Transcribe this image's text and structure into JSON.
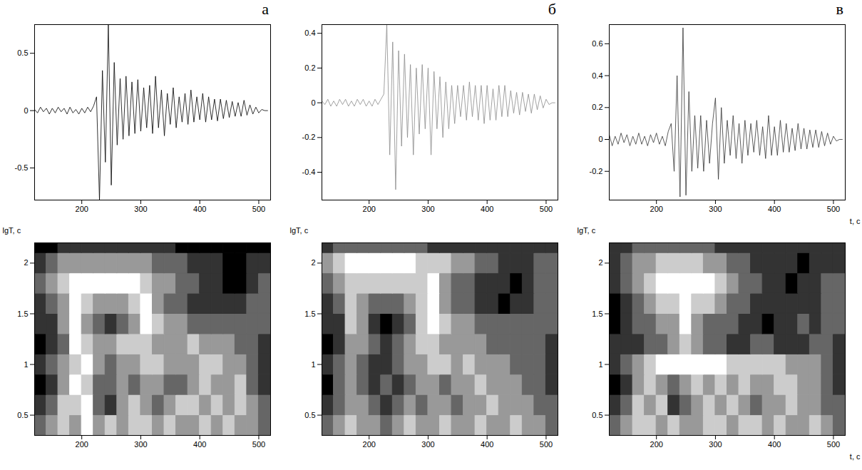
{
  "chart_data": [
    {
      "type": "line",
      "title": "а",
      "color": "#000000",
      "x": [
        120,
        125,
        130,
        135,
        140,
        145,
        150,
        155,
        160,
        165,
        170,
        175,
        180,
        185,
        190,
        195,
        200,
        205,
        210,
        215,
        220,
        225,
        230,
        235,
        240,
        245,
        250,
        255,
        260,
        265,
        270,
        275,
        280,
        285,
        290,
        295,
        300,
        305,
        310,
        315,
        320,
        325,
        330,
        335,
        340,
        345,
        350,
        355,
        360,
        365,
        370,
        375,
        380,
        385,
        390,
        395,
        400,
        405,
        410,
        415,
        420,
        425,
        430,
        435,
        440,
        445,
        450,
        455,
        460,
        465,
        470,
        475,
        480,
        485,
        490,
        495,
        500,
        505,
        510,
        515
      ],
      "values": [
        0.01,
        -0.02,
        0.03,
        -0.01,
        0.02,
        -0.03,
        0.02,
        -0.02,
        0.03,
        -0.01,
        0.02,
        -0.03,
        0.03,
        -0.02,
        0.01,
        -0.03,
        0.02,
        -0.02,
        0.03,
        -0.01,
        0.04,
        0.12,
        -0.78,
        0.35,
        -0.45,
        0.75,
        -0.65,
        0.42,
        -0.3,
        0.28,
        -0.25,
        0.3,
        -0.22,
        0.25,
        -0.2,
        0.27,
        -0.18,
        0.2,
        -0.15,
        0.22,
        -0.2,
        0.3,
        -0.15,
        0.18,
        -0.22,
        0.15,
        -0.12,
        0.2,
        -0.15,
        0.12,
        -0.1,
        0.15,
        -0.12,
        0.18,
        -0.1,
        0.12,
        -0.08,
        0.15,
        -0.1,
        0.12,
        -0.08,
        0.1,
        -0.09,
        0.1,
        -0.07,
        0.09,
        -0.06,
        0.08,
        -0.05,
        0.07,
        -0.05,
        0.09,
        -0.04,
        0.05,
        -0.03,
        0.03,
        -0.02,
        0.01,
        0,
        0
      ],
      "xlim": [
        120,
        520
      ],
      "xticks": [
        200,
        300,
        400,
        500
      ],
      "ylim": [
        -0.78,
        0.75
      ],
      "yticks": [
        -0.5,
        0,
        0.5
      ]
    },
    {
      "type": "line",
      "title": "б",
      "color": "#8a8a8a",
      "x": [
        120,
        125,
        130,
        135,
        140,
        145,
        150,
        155,
        160,
        165,
        170,
        175,
        180,
        185,
        190,
        195,
        200,
        205,
        210,
        215,
        220,
        225,
        230,
        235,
        240,
        245,
        250,
        255,
        260,
        265,
        270,
        275,
        280,
        285,
        290,
        295,
        300,
        305,
        310,
        315,
        320,
        325,
        330,
        335,
        340,
        345,
        350,
        355,
        360,
        365,
        370,
        375,
        380,
        385,
        390,
        395,
        400,
        405,
        410,
        415,
        420,
        425,
        430,
        435,
        440,
        445,
        450,
        455,
        460,
        465,
        470,
        475,
        480,
        485,
        490,
        495,
        500,
        505,
        510,
        515
      ],
      "values": [
        0.01,
        -0.01,
        0.02,
        -0.02,
        0.01,
        -0.02,
        0.02,
        -0.01,
        0.02,
        -0.02,
        0.01,
        -0.02,
        0.02,
        -0.01,
        0.02,
        -0.02,
        0.01,
        -0.02,
        0.02,
        -0.01,
        0.02,
        0.05,
        0.45,
        -0.3,
        0.35,
        -0.5,
        0.3,
        -0.25,
        0.28,
        -0.2,
        0.22,
        -0.3,
        0.2,
        -0.18,
        0.22,
        -0.15,
        0.2,
        -0.3,
        0.18,
        -0.15,
        0.15,
        -0.2,
        0.12,
        -0.15,
        0.1,
        -0.12,
        0.1,
        -0.08,
        0.1,
        -0.1,
        0.12,
        -0.08,
        0.1,
        -0.1,
        0.1,
        -0.12,
        0.1,
        -0.1,
        0.08,
        -0.1,
        0.1,
        -0.08,
        0.1,
        -0.08,
        0.07,
        -0.06,
        0.06,
        -0.07,
        0.06,
        -0.05,
        0.05,
        -0.06,
        0.05,
        -0.04,
        0.04,
        -0.03,
        0.02,
        -0.01,
        0,
        0
      ],
      "xlim": [
        120,
        520
      ],
      "xticks": [
        200,
        300,
        400,
        500
      ],
      "ylim": [
        -0.56,
        0.45
      ],
      "yticks": [
        -0.4,
        -0.2,
        0,
        0.2,
        0.4
      ]
    },
    {
      "type": "line",
      "title": "в",
      "color": "#333333",
      "x_label": "t, с",
      "x": [
        120,
        125,
        130,
        135,
        140,
        145,
        150,
        155,
        160,
        165,
        170,
        175,
        180,
        185,
        190,
        195,
        200,
        205,
        210,
        215,
        220,
        225,
        230,
        235,
        240,
        245,
        250,
        255,
        260,
        265,
        270,
        275,
        280,
        285,
        290,
        295,
        300,
        305,
        310,
        315,
        320,
        325,
        330,
        335,
        340,
        345,
        350,
        355,
        360,
        365,
        370,
        375,
        380,
        385,
        390,
        395,
        400,
        405,
        410,
        415,
        420,
        425,
        430,
        435,
        440,
        445,
        450,
        455,
        460,
        465,
        470,
        475,
        480,
        485,
        490,
        495,
        500,
        505,
        510,
        515
      ],
      "values": [
        0.03,
        -0.04,
        0.02,
        -0.03,
        0.04,
        -0.02,
        0.03,
        -0.04,
        0.02,
        -0.03,
        0.04,
        -0.03,
        0.02,
        -0.04,
        0.03,
        -0.02,
        0.04,
        -0.03,
        0.02,
        -0.04,
        0.05,
        0.1,
        -0.2,
        0.4,
        -0.36,
        0.7,
        -0.35,
        0.3,
        -0.2,
        0.15,
        -0.18,
        0.15,
        -0.2,
        0.12,
        -0.15,
        0.1,
        0.26,
        -0.25,
        0.2,
        -0.15,
        0.12,
        -0.1,
        0.15,
        -0.12,
        0.1,
        -0.15,
        0.12,
        -0.1,
        0.1,
        -0.08,
        0.12,
        -0.1,
        0.08,
        -0.12,
        0.15,
        -0.1,
        0.08,
        -0.1,
        0.12,
        -0.08,
        0.1,
        -0.08,
        0.07,
        -0.07,
        0.1,
        -0.06,
        0.07,
        -0.06,
        0.06,
        -0.05,
        0.06,
        -0.05,
        0.05,
        -0.04,
        0.04,
        -0.03,
        0.02,
        -0.01,
        0,
        0
      ],
      "xlim": [
        120,
        520
      ],
      "xticks": [
        200,
        300,
        400,
        500
      ],
      "ylim": [
        -0.38,
        0.72
      ],
      "yticks": [
        -0.2,
        0,
        0.2,
        0.4,
        0.6
      ]
    },
    {
      "type": "heatmap",
      "y_label": "lgT, с",
      "x": [
        130,
        150,
        170,
        190,
        210,
        230,
        250,
        270,
        290,
        310,
        330,
        350,
        370,
        390,
        410,
        430,
        450,
        470,
        490,
        510
      ],
      "y": [
        0.4,
        0.6,
        0.8,
        1,
        1.2,
        1.4,
        1.6,
        1.8,
        2,
        2.2
      ],
      "cells": [
        [
          2,
          3,
          4,
          3,
          5,
          3,
          4,
          3,
          4,
          4,
          3,
          4,
          3,
          3,
          4,
          3,
          4,
          3,
          3,
          2
        ],
        [
          1,
          2,
          4,
          4,
          5,
          2,
          1,
          3,
          4,
          3,
          2,
          3,
          4,
          4,
          3,
          4,
          3,
          4,
          3,
          2
        ],
        [
          0,
          1,
          3,
          5,
          4,
          2,
          2,
          3,
          2,
          3,
          3,
          2,
          2,
          3,
          4,
          3,
          3,
          4,
          2,
          1
        ],
        [
          1,
          2,
          3,
          4,
          5,
          3,
          2,
          3,
          3,
          4,
          4,
          3,
          3,
          3,
          4,
          4,
          3,
          3,
          2,
          1
        ],
        [
          0,
          1,
          2,
          5,
          4,
          3,
          3,
          4,
          4,
          4,
          3,
          3,
          3,
          4,
          3,
          3,
          3,
          2,
          2,
          1
        ],
        [
          1,
          1,
          3,
          5,
          3,
          2,
          1,
          2,
          3,
          5,
          4,
          3,
          3,
          2,
          2,
          2,
          2,
          2,
          2,
          2
        ],
        [
          1,
          2,
          3,
          5,
          4,
          3,
          3,
          3,
          4,
          5,
          3,
          2,
          2,
          1,
          1,
          1,
          1,
          1,
          2,
          2
        ],
        [
          2,
          3,
          4,
          5,
          5,
          5,
          5,
          5,
          5,
          4,
          3,
          3,
          2,
          2,
          1,
          1,
          0,
          0,
          1,
          2
        ],
        [
          1,
          2,
          3,
          3,
          3,
          3,
          3,
          3,
          3,
          3,
          2,
          2,
          2,
          1,
          1,
          1,
          0,
          0,
          1,
          1
        ],
        [
          0,
          0,
          1,
          1,
          1,
          1,
          1,
          1,
          1,
          1,
          1,
          1,
          0,
          0,
          0,
          0,
          0,
          0,
          0,
          0
        ]
      ],
      "zlim": [
        0,
        5
      ],
      "xlim": [
        120,
        520
      ],
      "xticks": [
        200,
        300,
        400,
        500
      ],
      "ylim": [
        0.3,
        2.2
      ],
      "yticks": [
        0.5,
        1,
        1.5,
        2
      ]
    },
    {
      "type": "heatmap",
      "y_label": "lgT, с",
      "x": [
        130,
        150,
        170,
        190,
        210,
        230,
        250,
        270,
        290,
        310,
        330,
        350,
        370,
        390,
        410,
        430,
        450,
        470,
        490,
        510
      ],
      "y": [
        0.4,
        0.6,
        0.8,
        1,
        1.2,
        1.4,
        1.6,
        1.8,
        2,
        2.2
      ],
      "cells": [
        [
          2,
          3,
          4,
          3,
          3,
          2,
          3,
          4,
          3,
          3,
          4,
          3,
          3,
          4,
          3,
          3,
          4,
          3,
          3,
          2
        ],
        [
          1,
          2,
          3,
          3,
          2,
          1,
          2,
          3,
          2,
          3,
          3,
          2,
          3,
          3,
          4,
          3,
          3,
          3,
          2,
          2
        ],
        [
          0,
          2,
          3,
          2,
          1,
          2,
          1,
          2,
          3,
          3,
          2,
          3,
          3,
          4,
          3,
          3,
          3,
          2,
          2,
          1
        ],
        [
          1,
          2,
          3,
          2,
          1,
          1,
          2,
          3,
          3,
          4,
          4,
          3,
          4,
          3,
          3,
          3,
          2,
          2,
          2,
          1
        ],
        [
          0,
          1,
          3,
          3,
          2,
          1,
          2,
          3,
          4,
          4,
          3,
          3,
          3,
          3,
          2,
          2,
          2,
          2,
          2,
          1
        ],
        [
          1,
          1,
          4,
          3,
          1,
          0,
          1,
          2,
          4,
          5,
          4,
          3,
          3,
          2,
          2,
          2,
          2,
          2,
          2,
          2
        ],
        [
          1,
          2,
          4,
          3,
          2,
          2,
          2,
          3,
          4,
          5,
          3,
          2,
          2,
          1,
          1,
          0,
          1,
          1,
          2,
          2
        ],
        [
          2,
          3,
          4,
          4,
          4,
          4,
          4,
          4,
          4,
          5,
          3,
          2,
          2,
          1,
          1,
          1,
          0,
          1,
          2,
          2
        ],
        [
          3,
          4,
          5,
          5,
          5,
          5,
          5,
          5,
          4,
          4,
          4,
          3,
          3,
          2,
          2,
          1,
          1,
          1,
          2,
          2
        ],
        [
          1,
          2,
          2,
          2,
          2,
          2,
          2,
          2,
          2,
          1,
          1,
          1,
          1,
          1,
          1,
          1,
          1,
          1,
          1,
          1
        ]
      ],
      "zlim": [
        0,
        5
      ],
      "xlim": [
        120,
        520
      ],
      "xticks": [
        200,
        300,
        400,
        500
      ],
      "ylim": [
        0.3,
        2.2
      ],
      "yticks": [
        0.5,
        1,
        1.5,
        2
      ]
    },
    {
      "type": "heatmap",
      "y_label": "lgT, с",
      "x_label": "t, с",
      "x": [
        130,
        150,
        170,
        190,
        210,
        230,
        250,
        270,
        290,
        310,
        330,
        350,
        370,
        390,
        410,
        430,
        450,
        470,
        490,
        510
      ],
      "y": [
        0.4,
        0.6,
        0.8,
        1,
        1.2,
        1.4,
        1.6,
        1.8,
        2,
        2.2
      ],
      "cells": [
        [
          2,
          3,
          4,
          4,
          3,
          4,
          3,
          3,
          4,
          4,
          3,
          4,
          4,
          3,
          4,
          3,
          3,
          4,
          3,
          2
        ],
        [
          1,
          2,
          4,
          3,
          4,
          1,
          2,
          3,
          4,
          3,
          4,
          3,
          2,
          3,
          3,
          4,
          3,
          3,
          2,
          2
        ],
        [
          0,
          1,
          3,
          4,
          3,
          2,
          3,
          4,
          3,
          4,
          3,
          4,
          3,
          3,
          4,
          4,
          3,
          3,
          2,
          1
        ],
        [
          1,
          2,
          3,
          4,
          5,
          5,
          5,
          5,
          5,
          5,
          4,
          4,
          4,
          4,
          4,
          3,
          3,
          3,
          2,
          1
        ],
        [
          1,
          1,
          1,
          2,
          2,
          3,
          4,
          3,
          2,
          2,
          1,
          1,
          2,
          2,
          1,
          1,
          1,
          2,
          2,
          1
        ],
        [
          0,
          1,
          2,
          2,
          3,
          3,
          5,
          3,
          2,
          2,
          2,
          1,
          1,
          0,
          1,
          1,
          2,
          1,
          2,
          2
        ],
        [
          0,
          1,
          2,
          3,
          4,
          4,
          5,
          4,
          4,
          3,
          2,
          2,
          1,
          1,
          1,
          1,
          1,
          1,
          2,
          2
        ],
        [
          1,
          2,
          3,
          4,
          5,
          5,
          5,
          5,
          5,
          4,
          3,
          2,
          2,
          1,
          1,
          0,
          1,
          1,
          2,
          2
        ],
        [
          1,
          2,
          3,
          3,
          4,
          4,
          4,
          4,
          3,
          3,
          2,
          2,
          1,
          1,
          1,
          1,
          0,
          1,
          1,
          1
        ],
        [
          1,
          1,
          2,
          2,
          2,
          2,
          2,
          2,
          2,
          1,
          1,
          1,
          1,
          1,
          1,
          1,
          1,
          1,
          1,
          1
        ]
      ],
      "zlim": [
        0,
        5
      ],
      "xlim": [
        120,
        520
      ],
      "xticks": [
        200,
        300,
        400,
        500
      ],
      "ylim": [
        0.3,
        2.2
      ],
      "yticks": [
        0.5,
        1,
        1.5,
        2
      ]
    }
  ]
}
